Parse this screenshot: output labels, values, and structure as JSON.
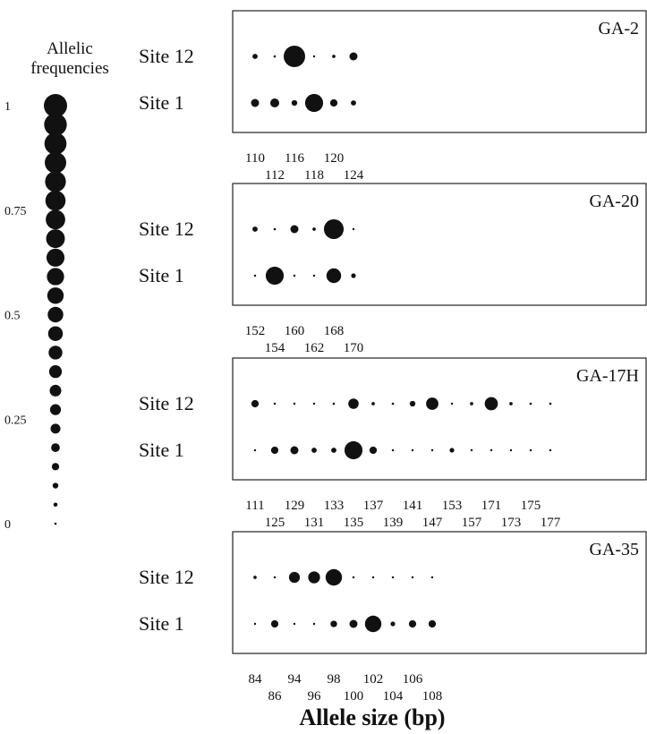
{
  "chart_data": {
    "type": "scatter",
    "xlabel": "Allele size (bp)",
    "legend": {
      "title_lines": [
        "Allelic",
        "frequencies"
      ],
      "ticks": [
        {
          "label": "1",
          "value": 1
        },
        {
          "label": "0.75",
          "value": 0.75
        },
        {
          "label": "0.5",
          "value": 0.5
        },
        {
          "label": "0.25",
          "value": 0.25
        },
        {
          "label": "0",
          "value": 0
        }
      ],
      "sizes": [
        1.0,
        0.95,
        0.9,
        0.85,
        0.8,
        0.75,
        0.7,
        0.65,
        0.6,
        0.55,
        0.5,
        0.45,
        0.4,
        0.35,
        0.3,
        0.25,
        0.22,
        0.18,
        0.14,
        0.1,
        0.06,
        0.03,
        0.01
      ]
    },
    "panels": [
      {
        "locus": "GA-2",
        "alleles": [
          110,
          112,
          116,
          118,
          120,
          124
        ],
        "ticks_top": [
          "110",
          "116",
          "120"
        ],
        "ticks_bottom": [
          "112",
          "118",
          "124"
        ],
        "series": [
          {
            "name": "Site 12",
            "values": [
              0.05,
              0.01,
              0.85,
              0,
              0.02,
              0.12
            ]
          },
          {
            "name": "Site 1",
            "values": [
              0.12,
              0.15,
              0.06,
              0.6,
              0.1,
              0.05
            ]
          }
        ]
      },
      {
        "locus": "GA-20",
        "alleles": [
          152,
          154,
          160,
          162,
          168,
          170
        ],
        "ticks_top": [
          "152",
          "160",
          "168"
        ],
        "ticks_bottom": [
          "154",
          "162",
          "170"
        ],
        "series": [
          {
            "name": "Site 12",
            "values": [
              0.05,
              0.01,
              0.12,
              0.02,
              0.72,
              0.005
            ]
          },
          {
            "name": "Site 1",
            "values": [
              0.005,
              0.6,
              0.005,
              0.005,
              0.4,
              0.04
            ]
          }
        ]
      },
      {
        "locus": "GA-17H",
        "alleles": [
          111,
          125,
          129,
          131,
          133,
          135,
          137,
          139,
          141,
          147,
          153,
          157,
          171,
          173,
          175,
          177
        ],
        "ticks_top": [
          "111",
          "129",
          "133",
          "137",
          "141",
          "153",
          "171",
          "175"
        ],
        "ticks_bottom": [
          "125",
          "131",
          "135",
          "139",
          "147",
          "157",
          "173",
          "177"
        ],
        "series": [
          {
            "name": "Site 12",
            "values": [
              0.1,
              0.005,
              0.005,
              0.005,
              0.01,
              0.2,
              0.02,
              0.01,
              0.06,
              0.28,
              0.005,
              0.02,
              0.32,
              0.02,
              0.01,
              0.01
            ]
          },
          {
            "name": "Site 1",
            "values": [
              0.005,
              0.1,
              0.12,
              0.05,
              0.05,
              0.6,
              0.1,
              0.005,
              0.005,
              0.005,
              0.04,
              0.005,
              0.005,
              0.005,
              0.005,
              0.005
            ]
          }
        ]
      },
      {
        "locus": "GA-35",
        "alleles": [
          84,
          86,
          94,
          96,
          98,
          100,
          102,
          104,
          106,
          108
        ],
        "ticks_top": [
          "84",
          "94",
          "98",
          "102",
          "106"
        ],
        "ticks_bottom": [
          "86",
          "96",
          "100",
          "104",
          "108"
        ],
        "series": [
          {
            "name": "Site 12",
            "values": [
              0.02,
              0.005,
              0.22,
              0.26,
              0.5,
              0.005,
              0.005,
              0.005,
              0.005,
              0.005
            ]
          },
          {
            "name": "Site 1",
            "values": [
              0.005,
              0.1,
              0.005,
              0.005,
              0.08,
              0.12,
              0.5,
              0.04,
              0.1,
              0.1
            ]
          }
        ]
      }
    ]
  }
}
